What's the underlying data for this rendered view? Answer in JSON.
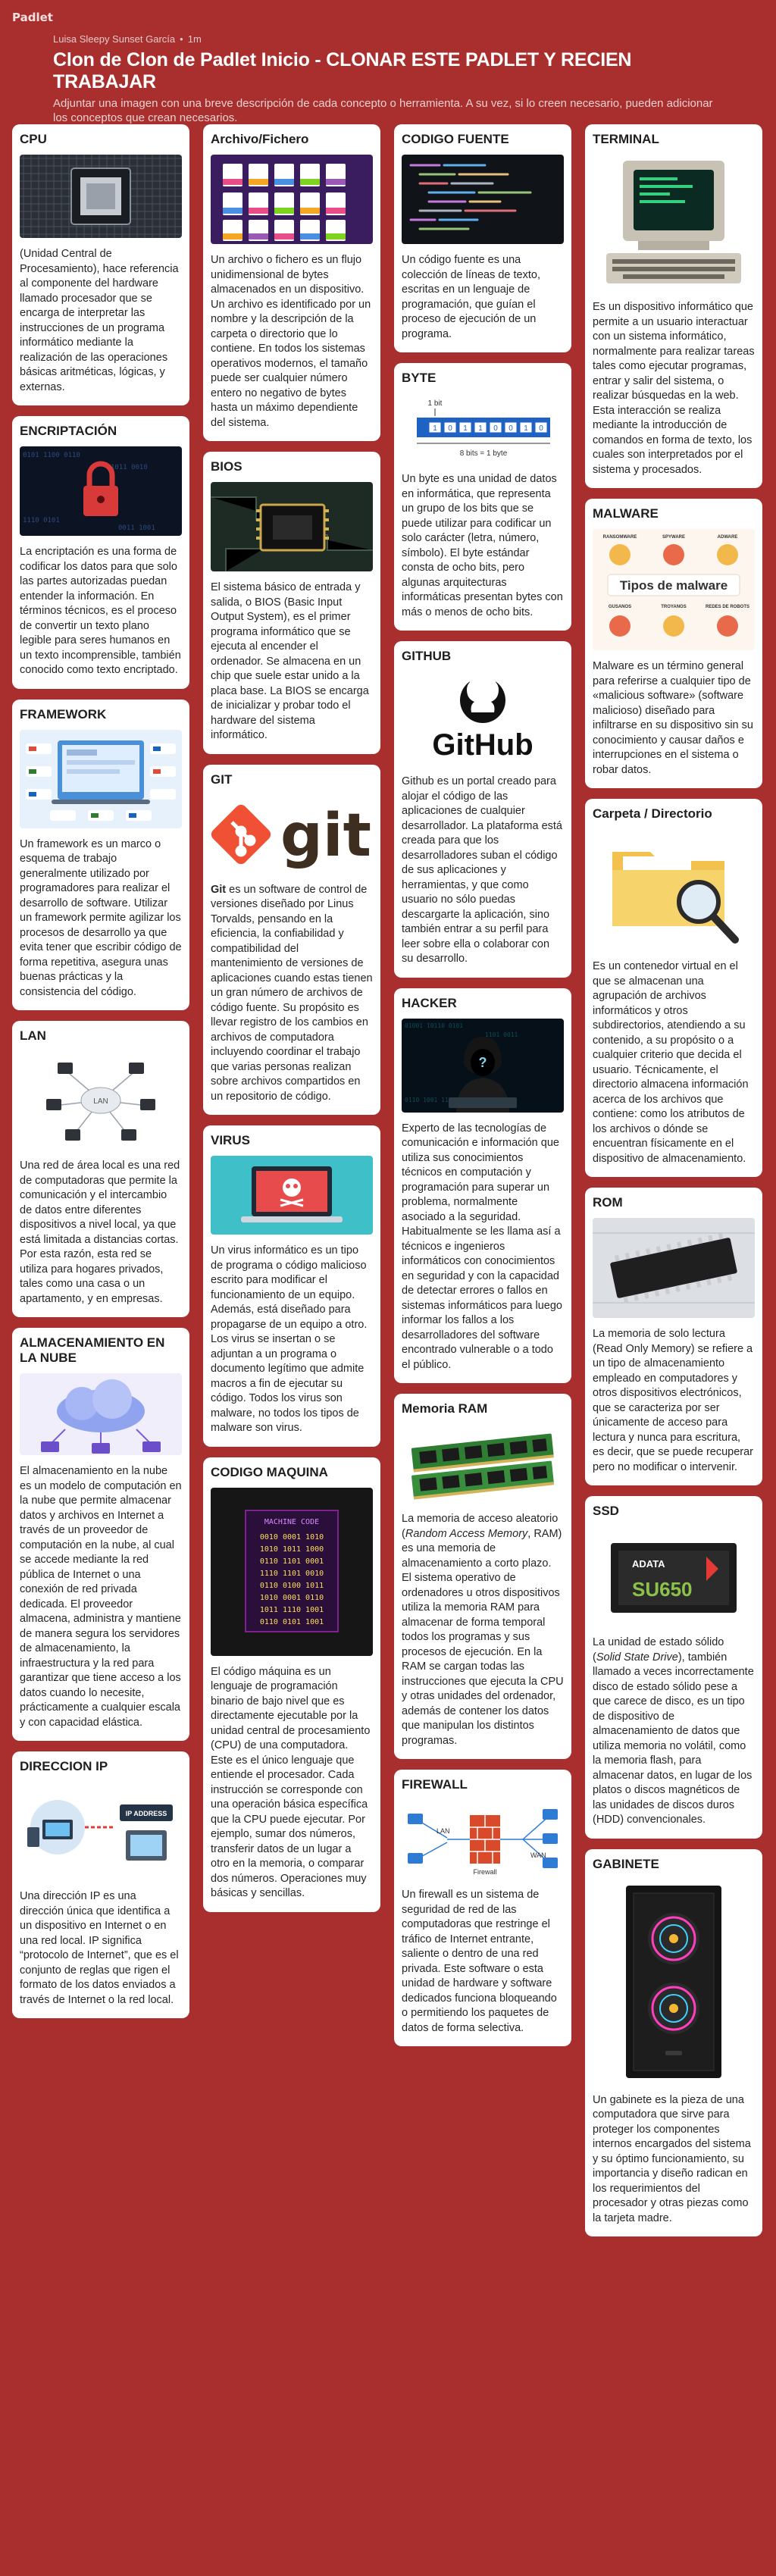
{
  "app": {
    "logo": "Padlet"
  },
  "header": {
    "author": "Luisa Sleepy Sunset García",
    "time": "1m",
    "title": "Clon de Clon de Padlet Inicio - CLONAR ESTE PADLET Y RECIEN TRABAJAR",
    "subtitle": "Adjuntar una imagen con una breve descripción de cada concepto o herramienta. A su vez, si lo creen necesario, pueden adicionar los conceptos que crean necesarios."
  },
  "colors": {
    "background": "#a82f2e",
    "card": "#ffffff"
  },
  "columns": [
    {
      "cards": [
        {
          "title": "CPU",
          "icon": "cpu-chip-image",
          "text": "(Unidad Central de Procesamiento), hace referencia al componente del hardware llamado procesador que se encarga de interpretar las instrucciones de un programa informático mediante la realización de las operaciones básicas aritméticas, lógicas, y externas."
        },
        {
          "title": "ENCRIPTACIÓN",
          "icon": "padlock-image",
          "text": "La encriptación es una forma de codificar los datos para que solo las partes autorizadas puedan entender la información. En términos técnicos, es el proceso de convertir un texto plano legible para seres humanos en un texto incomprensible, también conocido como texto encriptado."
        },
        {
          "title": "FRAMEWORK",
          "icon": "framework-logos-image",
          "text": "Un framework es un marco o esquema de trabajo generalmente utilizado por programadores para realizar el desarrollo de software. Utilizar un framework permite agilizar los procesos de desarrollo ya que evita tener que escribir código de forma repetitiva, asegura unas buenas prácticas y la consistencia del código."
        },
        {
          "title": "LAN",
          "icon": "lan-network-image",
          "image_text": "LAN",
          "text": "Una red de área local es una red de computadoras que permite la comunicación y el intercambio de datos entre diferentes dispositivos a nivel local, ya que está limitada a distancias cortas. Por esta razón, esta red se utiliza para hogares privados, tales como una casa o un apartamento, y en empresas."
        },
        {
          "title": "ALMACENAMIENTO EN LA NUBE",
          "icon": "cloud-storage-image",
          "text": "El almacenamiento en la nube es un modelo de computación en la nube que permite almacenar datos y archivos en Internet a través de un proveedor de computación en la nube, al cual se accede mediante la red pública de Internet o una conexión de red privada dedicada. El proveedor almacena, administra y mantiene de manera segura los servidores de almacenamiento, la infraestructura y la red para garantizar que tiene acceso a los datos cuando lo necesite, prácticamente a cualquier escala y con capacidad elástica."
        },
        {
          "title": "DIRECCION IP",
          "icon": "ip-address-image",
          "image_text": "IP ADDRESS",
          "text": "Una dirección IP es una dirección única que identifica a un dispositivo en Internet o en una red local. IP significa “protocolo de Internet”, que es el conjunto de reglas que rigen el formato de los datos enviados a través de Internet o la red local."
        }
      ]
    },
    {
      "cards": [
        {
          "title": "Archivo/Fichero",
          "icon": "file-icons-image",
          "text": "Un archivo o fichero es un flujo unidimensional de bytes almacenados en un dispositivo. Un archivo es identificado por un nombre y la descripción de la carpeta o directorio que lo contiene.  En todos los sistemas operativos modernos, el tamaño puede ser cualquier número entero no negativo de bytes hasta un máximo dependiente del sistema."
        },
        {
          "title": "BIOS",
          "icon": "bios-chip-image",
          "text": "El sistema básico de entrada y salida, o BIOS (Basic Input Output System), es el primer programa informático que se ejecuta al encender el ordenador. Se almacena en un chip que suele estar unido a la placa base. La BIOS se encarga de inicializar y probar todo el hardware del sistema informático."
        },
        {
          "title": "GIT",
          "icon": "git-logo-image",
          "image_text": "git",
          "text_bold": "Git",
          "text": " es un software de control de versiones diseñado por Linus Torvalds, pensando en la eficiencia, la confiabilidad y compatibilidad del mantenimiento de versiones de aplicaciones cuando estas tienen un gran número de archivos de código fuente. Su propósito es llevar registro de los cambios en archivos de computadora incluyendo coordinar el trabajo que varias personas realizan sobre archivos compartidos en un repositorio de código."
        },
        {
          "title": "VIRUS",
          "icon": "virus-laptop-image",
          "text": "Un virus informático es un tipo de programa o código malicioso escrito para modificar el funcionamiento de un equipo. Además, está diseñado para propagarse de un equipo a otro. Los virus se insertan o se adjuntan a un programa o documento legítimo que admite macros a fin de ejecutar su código. Todos los virus son malware, no todos los tipos de malware son virus."
        },
        {
          "title": "CODIGO MAQUINA",
          "icon": "machine-code-image",
          "image_title": "MACHINE CODE",
          "image_lines": [
            "0010 0001 1010",
            "1010 1011 1000",
            "0110 1101 0001",
            "1110 1101 0010",
            "0110 0100 1011",
            "1010 0001 0110",
            "1011 1110 1001",
            "0110 0101 1001"
          ],
          "text": "El código máquina es un lenguaje de programación binario de bajo nivel que es directamente ejecutable por la unidad central de procesamiento (CPU) de una computadora. Este es el único lenguaje que entiende el procesador. Cada instrucción se corresponde con una operación básica específica que la CPU puede ejecutar. Por ejemplo, sumar dos números, transferir datos de un lugar a otro en la memoria, o comparar dos números. Operaciones muy básicas y sencillas."
        }
      ]
    },
    {
      "cards": [
        {
          "title": "CODIGO FUENTE",
          "icon": "source-code-image",
          "text": "Un código fuente es una colección de líneas de texto, escritas en un lenguaje de programación, que guían el proceso de ejecución de un programa."
        },
        {
          "title": "BYTE",
          "icon": "byte-diagram-image",
          "image_top": "1 bit",
          "image_bits": [
            "1",
            "0",
            "1",
            "1",
            "0",
            "0",
            "1",
            "0"
          ],
          "image_bottom": "8 bits = 1 byte",
          "text": "Un byte es una unidad de datos en informática, que representa un grupo de los bits que se puede utilizar para codificar un solo carácter (letra, número, símbolo). El byte estándar consta de ocho bits, pero algunas arquitecturas informáticas presentan bytes con más o menos de ocho bits."
        },
        {
          "title": "GITHUB",
          "icon": "github-logo-image",
          "image_text": "GitHub",
          "text": "Github es un portal creado para alojar el código de las aplicaciones de cualquier desarrollador. La plataforma está creada para que los desarrolladores suban el código de sus aplicaciones y herramientas, y que como usuario no sólo puedas descargarte la aplicación, sino también entrar a su perfil para leer sobre ella o colaborar con su desarrollo."
        },
        {
          "title": "HACKER",
          "icon": "hacker-image",
          "text": "Experto de las tecnologías de comunicación e información que utiliza sus conocimientos técnicos en computación y programación para superar un problema, normalmente asociado a la seguridad. Habitualmente se les llama así a técnicos e ingenieros informáticos con conocimientos en seguridad y con la capacidad de detectar errores o fallos en sistemas informáticos para luego informar los fallos a los desarrolladores del software encontrado vulnerable o a todo el público."
        },
        {
          "title": "Memoria RAM",
          "icon": "ram-modules-image",
          "text_pre": "La memoria de acceso aleatorio (",
          "text_italic": "Random Access Memory",
          "text": ", RAM) es una memoria de almacenamiento a corto plazo. El sistema operativo de ordenadores u otros dispositivos utiliza la memoria RAM para almacenar de forma temporal todos los programas y sus procesos de ejecución. En la RAM se cargan todas las instrucciones que ejecuta la CPU y otras unidades del ordenador, además de contener los datos que manipulan los distintos programas."
        },
        {
          "title": "FIREWALL",
          "icon": "firewall-diagram-image",
          "image_labels": [
            "LAN",
            "Firewall",
            "WAN"
          ],
          "text": "Un firewall es un sistema de seguridad de red de las computadoras que restringe el tráfico de Internet entrante, saliente o dentro de una red privada. Este software o esta unidad de hardware y software dedicados funciona bloqueando o permitiendo los paquetes de datos de forma selectiva."
        }
      ]
    },
    {
      "cards": [
        {
          "title": "TERMINAL",
          "icon": "terminal-computer-image",
          "text": "Es un dispositivo informático que permite a un usuario interactuar con un sistema informático, normalmente para realizar tareas tales como ejecutar programas, entrar y salir del sistema, o realizar búsquedas en la web. Esta interacción se realiza mediante la introducción de comandos en forma de texto, los cuales son interpretados por el sistema y procesados."
        },
        {
          "title": "MALWARE",
          "icon": "malware-types-image",
          "image_text": "Tipos de malware",
          "image_row1": [
            "RANSOMWARE",
            "SPYWARE",
            "ADWARE"
          ],
          "image_row2": [
            "GUSANOS",
            "TROYANOS",
            "REDES DE ROBOTS"
          ],
          "text": "Malware es un término general para referirse a cualquier tipo de «malicious software» (software malicioso) diseñado para infiltrarse en su dispositivo sin su conocimiento y causar daños e interrupciones en el sistema o robar datos."
        },
        {
          "title": "Carpeta / Directorio",
          "icon": "folder-magnifier-image",
          "text": "Es un contenedor virtual en el que se almacenan una agrupación de archivos informáticos y otros subdirectorios, atendiendo a su contenido, a su propósito o a cualquier criterio que decida el usuario. Técnicamente, el directorio almacena información acerca de los archivos que contiene: como los atributos de los archivos o dónde se encuentran físicamente en el dispositivo de almacenamiento."
        },
        {
          "title": "ROM",
          "icon": "rom-chip-image",
          "text": "La memoria de solo lectura (Read Only Memory) se refiere a un tipo de almacenamiento empleado en computadores y otros dispositivos electrónicos, que se caracteriza por ser únicamente de acceso para lectura y nunca para escritura, es decir, que se puede recuperar pero no modificar o intervenir."
        },
        {
          "title": "SSD",
          "icon": "ssd-drive-image",
          "image_brand": "ADATA",
          "image_model": "SU650",
          "text_pre": "La unidad de estado sólido (",
          "text_italic": "Solid State Drive",
          "text": "), también llamado a veces incorrectamente disco de estado sólido pese a que carece de disco, es un tipo de dispositivo de almacenamiento de datos que utiliza memoria no volátil, como la memoria flash, para almacenar datos, en lugar de los platos o discos magnéticos de las unidades de discos duros (HDD) convencionales."
        },
        {
          "title": "GABINETE",
          "icon": "pc-case-image",
          "text": "Un gabinete es la pieza de una computadora que sirve para proteger los componentes internos encargados del sistema y su óptimo funcionamiento, su importancia y diseño radican en los requerimientos del procesador y otras piezas como la tarjeta madre."
        }
      ]
    }
  ]
}
